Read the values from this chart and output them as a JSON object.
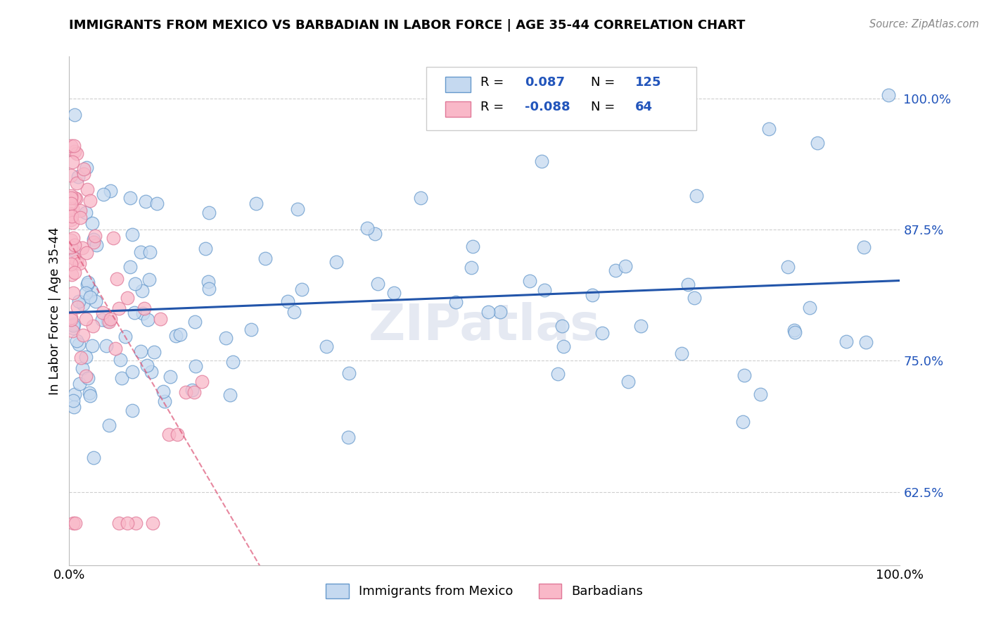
{
  "title": "IMMIGRANTS FROM MEXICO VS BARBADIAN IN LABOR FORCE | AGE 35-44 CORRELATION CHART",
  "source": "Source: ZipAtlas.com",
  "ylabel": "In Labor Force | Age 35-44",
  "xlim": [
    0.0,
    1.0
  ],
  "ylim": [
    0.555,
    1.04
  ],
  "yticks": [
    0.625,
    0.75,
    0.875,
    1.0
  ],
  "ytick_labels": [
    "62.5%",
    "75.0%",
    "87.5%",
    "100.0%"
  ],
  "legend_r_blue": "0.087",
  "legend_n_blue": "125",
  "legend_r_pink": "-0.088",
  "legend_n_pink": "64",
  "blue_fill": "#c5d9f0",
  "blue_edge": "#6699cc",
  "pink_fill": "#f9b8c8",
  "pink_edge": "#e07898",
  "trend_blue_color": "#2255aa",
  "trend_pink_color": "#dd5577",
  "background_color": "#ffffff",
  "grid_color": "#bbbbbb",
  "text_blue": "#2255bb",
  "watermark": "ZIPatlas"
}
